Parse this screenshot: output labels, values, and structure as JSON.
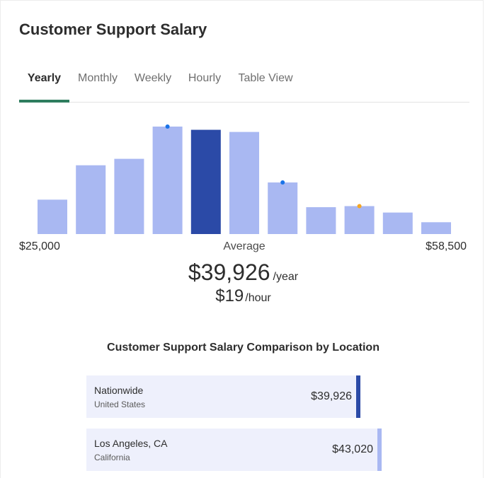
{
  "header": {
    "title": "Customer Support Salary"
  },
  "tabs": [
    {
      "label": "Yearly",
      "active": true
    },
    {
      "label": "Monthly",
      "active": false
    },
    {
      "label": "Weekly",
      "active": false
    },
    {
      "label": "Hourly",
      "active": false
    },
    {
      "label": "Table View",
      "active": false
    }
  ],
  "summary": {
    "min_label": "$25,000",
    "avg_label": "Average",
    "max_label": "$58,500",
    "yearly_amount": "$39,926",
    "yearly_unit": "/year",
    "hourly_amount": "$19",
    "hourly_unit": "/hour"
  },
  "comparison": {
    "title": "Customer Support Salary Comparison by Location",
    "rows": [
      {
        "name": "Nationwide",
        "sub": "United States",
        "value": "$39,926",
        "amount": 39926,
        "accent": "#2b4aa7"
      },
      {
        "name": "Los Angeles, CA",
        "sub": "California",
        "value": "$43,020",
        "amount": 43020,
        "accent": "#a9b8f2"
      }
    ]
  },
  "chart_data": {
    "type": "bar",
    "x_range": [
      25000,
      58500
    ],
    "bins": 11,
    "values": [
      32,
      64,
      70,
      100,
      97,
      95,
      48,
      25,
      26,
      20,
      11
    ],
    "highlight_bin": 4,
    "bar_color": "#a9b8f2",
    "highlight_color": "#2b4aa7",
    "markers": [
      {
        "bin": 3,
        "value": 100,
        "color": "#1a73e8"
      },
      {
        "bin": 6,
        "value": 48,
        "color": "#1a73e8"
      },
      {
        "bin": 8,
        "value": 26,
        "color": "#f5a623"
      }
    ]
  }
}
